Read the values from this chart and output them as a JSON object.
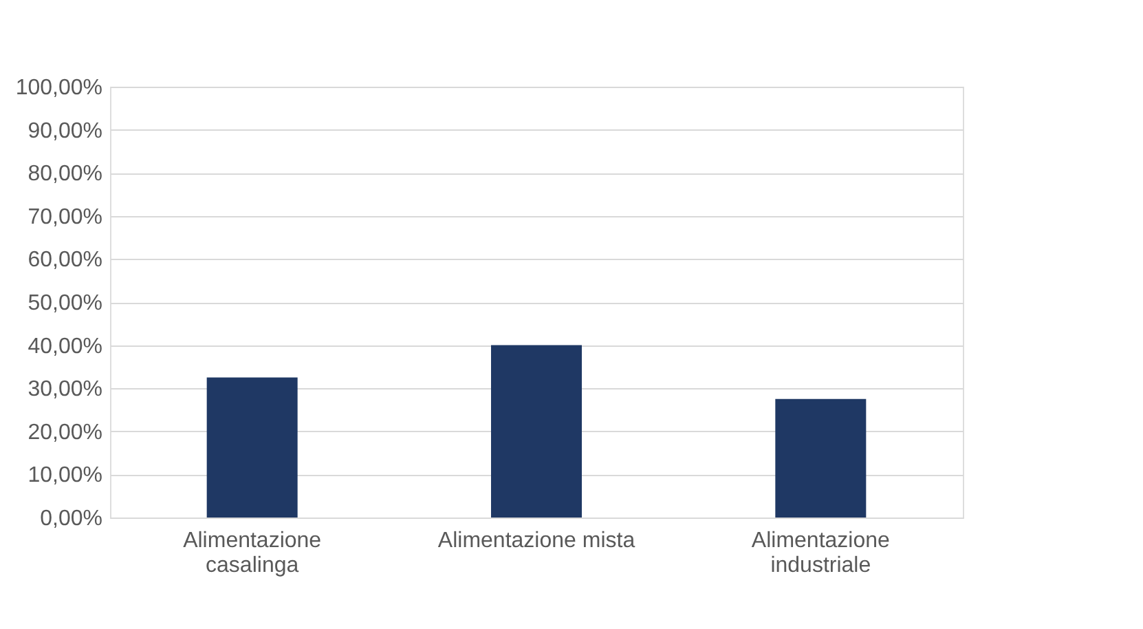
{
  "chart_data": {
    "type": "bar",
    "categories": [
      "Alimentazione casalinga",
      "Alimentazione mista",
      "Alimentazione industriale"
    ],
    "values": [
      32.5,
      40,
      27.5
    ],
    "color": "#1f3864",
    "ylim": [
      0,
      100
    ],
    "yticks": [
      {
        "value": 0,
        "label": "0,00%"
      },
      {
        "value": 10,
        "label": "10,00%"
      },
      {
        "value": 20,
        "label": "20,00%"
      },
      {
        "value": 30,
        "label": "30,00%"
      },
      {
        "value": 40,
        "label": "40,00%"
      },
      {
        "value": 50,
        "label": "50,00%"
      },
      {
        "value": 60,
        "label": "60,00%"
      },
      {
        "value": 70,
        "label": "70,00%"
      },
      {
        "value": 80,
        "label": "80,00%"
      },
      {
        "value": 90,
        "label": "90,00%"
      },
      {
        "value": 100,
        "label": "100,00%"
      }
    ],
    "grid": "y"
  }
}
